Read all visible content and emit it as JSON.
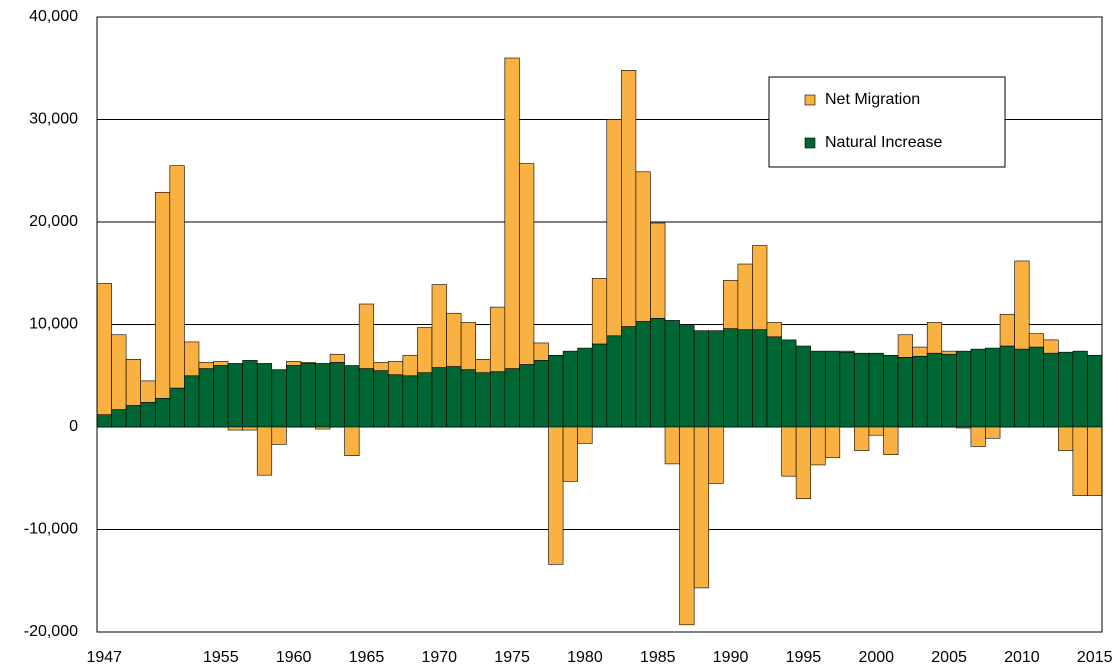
{
  "chart_data": {
    "type": "bar",
    "stacked": true,
    "categories": [
      "1947",
      null,
      null,
      null,
      null,
      null,
      null,
      null,
      "1955",
      null,
      null,
      null,
      null,
      "1960",
      null,
      null,
      null,
      null,
      "1965",
      null,
      null,
      null,
      null,
      "1970",
      null,
      null,
      null,
      null,
      "1975",
      null,
      null,
      null,
      null,
      "1980",
      null,
      null,
      null,
      null,
      "1985",
      null,
      null,
      null,
      null,
      "1990",
      null,
      null,
      null,
      null,
      "1995",
      null,
      null,
      null,
      null,
      "2000",
      null,
      null,
      null,
      null,
      "2005",
      null,
      null,
      null,
      null,
      "2010",
      null,
      null,
      null,
      null,
      "2015"
    ],
    "series": [
      {
        "name": "Net Migration",
        "color": "#f9b142",
        "values": [
          12800,
          7300,
          4500,
          2100,
          20100,
          21700,
          3300,
          600,
          400,
          -300,
          -300,
          -4700,
          -1700,
          400,
          100,
          -200,
          800,
          -2800,
          6300,
          800,
          1300,
          2000,
          4400,
          8100,
          5200,
          4600,
          1300,
          6300,
          30300,
          19600,
          1700,
          -13400,
          -5300,
          -1600,
          6400,
          21100,
          25000,
          14600,
          9300,
          -3600,
          -19300,
          -15700,
          -5500,
          4700,
          6400,
          8200,
          1400,
          -4800,
          -7000,
          -3700,
          -3000,
          100,
          -2300,
          -800,
          -2700,
          2200,
          900,
          3000,
          300,
          -100,
          -1900,
          -1100,
          3100,
          8600,
          1300,
          1300,
          -2300,
          -6700,
          -6700
        ]
      },
      {
        "name": "Natural Increase",
        "color": "#006633",
        "values": [
          1200,
          1700,
          2100,
          2400,
          2800,
          3800,
          5000,
          5700,
          6000,
          6200,
          6500,
          6200,
          5600,
          6000,
          6200,
          6200,
          6300,
          6000,
          5700,
          5500,
          5100,
          5000,
          5300,
          5800,
          5900,
          5600,
          5300,
          5400,
          5700,
          6100,
          6500,
          7000,
          7400,
          7700,
          8100,
          8900,
          9800,
          10300,
          10600,
          10400,
          9900,
          9400,
          9400,
          9600,
          9500,
          9500,
          8800,
          8500,
          7900,
          7400,
          7400,
          7300,
          7200,
          7200,
          7000,
          6800,
          6900,
          7200,
          7100,
          7400,
          7600,
          7700,
          7900,
          7600,
          7800,
          7200,
          7300,
          7400,
          7000
        ]
      }
    ],
    "ylim": [
      -20000,
      40000
    ],
    "yticks": [
      {
        "value": -20000,
        "label": "-20,000"
      },
      {
        "value": -10000,
        "label": "-10,000"
      },
      0,
      {
        "value": 10000,
        "label": "10,000"
      },
      {
        "value": 20000,
        "label": "20,000"
      },
      {
        "value": 30000,
        "label": "30,000"
      },
      {
        "value": 40000,
        "label": "40,000"
      }
    ],
    "grid": true,
    "legend": "upper right"
  }
}
